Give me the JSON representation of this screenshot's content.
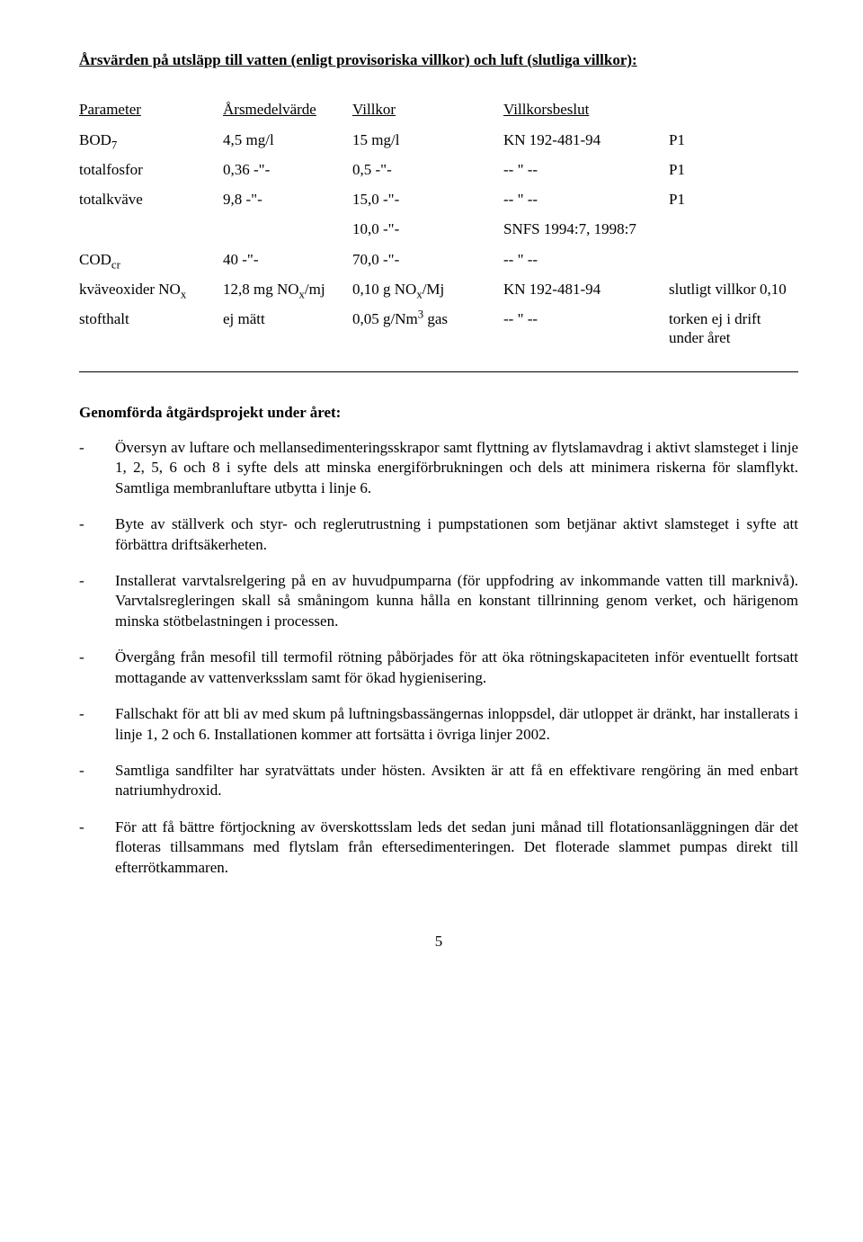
{
  "title": "Årsvärden på utsläpp till vatten (enligt provisoriska villkor) och luft (slutliga villkor):",
  "table": {
    "headers": [
      "Parameter",
      "Årsmedelvärde",
      "Villkor",
      "Villkorsbeslut",
      ""
    ],
    "rows": [
      {
        "param_html": "BOD<sub>7</sub>",
        "ars": "4,5 mg/l",
        "villkor": "15 mg/l",
        "beslut": "KN 192-481-94",
        "extra": "P1"
      },
      {
        "param_html": "totalfosfor",
        "ars": "0,36  -\"-",
        "villkor": "0,5 -\"-",
        "beslut": "-- \" --",
        "extra": "P1"
      },
      {
        "param_html": "totalkväve",
        "ars": "9,8 -\"-",
        "villkor": "15,0 -\"-",
        "beslut": "-- \" --",
        "extra": "P1"
      },
      {
        "param_html": "",
        "ars": "",
        "villkor": "10,0 -\"-",
        "beslut": "SNFS 1994:7, 1998:7",
        "extra": ""
      },
      {
        "param_html": "COD<sub>cr</sub>",
        "ars": "40 -\"-",
        "villkor": "70,0 -\"-",
        "beslut": "-- \" --",
        "extra": ""
      },
      {
        "param_html": "kväveoxider NO<sub>x</sub>",
        "ars": "12,8 mg NO<sub>x</sub>/mj",
        "villkor": "0,10 g NO<sub>x</sub>/Mj",
        "beslut": "KN 192-481-94",
        "extra": "slutligt villkor 0,10"
      },
      {
        "param_html": "stofthalt",
        "ars": "ej mätt",
        "villkor": "0,05 g/Nm<sup>3</sup> gas",
        "beslut": "-- \" --",
        "extra": "torken ej i drift under året"
      }
    ]
  },
  "projects_title": "Genomförda åtgärdsprojekt under året:",
  "projects": [
    "Översyn av luftare och mellansedimenteringsskrapor samt flyttning av flytslamavdrag i aktivt slamsteget i linje 1, 2, 5, 6 och 8 i syfte dels att minska energiförbrukningen och dels att minimera riskerna för slamflykt. Samtliga membranluftare utbytta i linje 6.",
    "Byte av ställverk och styr- och reglerutrustning i pumpstationen som betjänar aktivt slamsteget i syfte att förbättra driftsäkerheten.",
    "Installerat varvtalsrelgering på en av huvudpumparna (för uppfodring av inkommande vatten till marknivå). Varvtalsregleringen skall så småningom kunna hålla en konstant tillrinning genom verket, och härigenom minska stötbelastningen i processen.",
    "Övergång från mesofil till termofil rötning påbörjades för att öka rötningskapaciteten inför eventuellt fortsatt mottagande av vattenverksslam samt för ökad hygienisering.",
    "Fallschakt för att bli av med skum på luftningsbassängernas inloppsdel, där utloppet är dränkt, har installerats i linje 1, 2 och 6. Installationen kommer att fortsätta i övriga linjer 2002.",
    "Samtliga sandfilter har syratvättats under hösten. Avsikten är att få en effektivare rengöring än med enbart natriumhydroxid.",
    "För att få bättre förtjockning av överskottsslam leds det sedan juni månad till flotationsanläggningen där det floteras tillsammans med flytslam från eftersedimenteringen. Det floterade slammet pumpas direkt till efterrötkammaren."
  ],
  "page_number": "5"
}
